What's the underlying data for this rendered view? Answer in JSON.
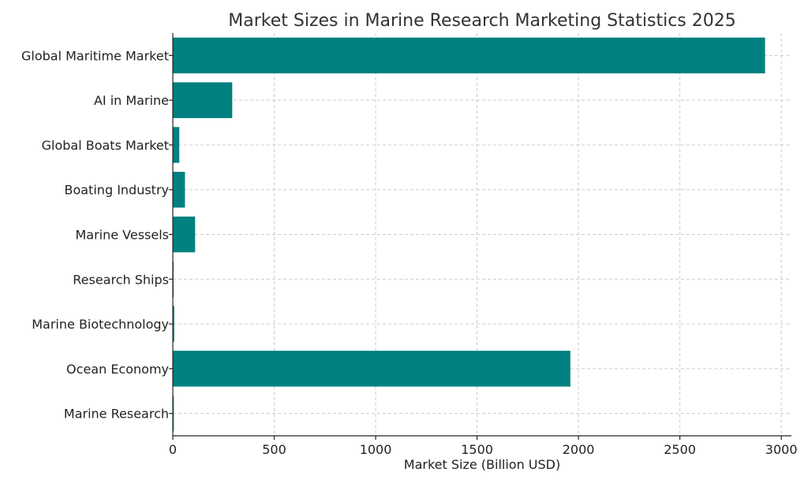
{
  "chart_data": {
    "type": "bar",
    "orientation": "horizontal",
    "title": "Market Sizes in Marine Research Marketing Statistics 2025",
    "xlabel": "Market Size (Billion USD)",
    "ylabel": "",
    "categories": [
      "Global Maritime Market",
      "AI in Marine",
      "Global Boats Market",
      "Boating Industry",
      "Marine Vessels",
      "Research Ships",
      "Marine Biotechnology",
      "Ocean Economy",
      "Marine Research"
    ],
    "values": [
      2920,
      293,
      32,
      60,
      110,
      4,
      7,
      1960,
      5
    ],
    "xlim": [
      0,
      3050
    ],
    "xticks": [
      0,
      500,
      1000,
      1500,
      2000,
      2500,
      3000
    ],
    "grid": true,
    "bar_color": "#008080"
  }
}
